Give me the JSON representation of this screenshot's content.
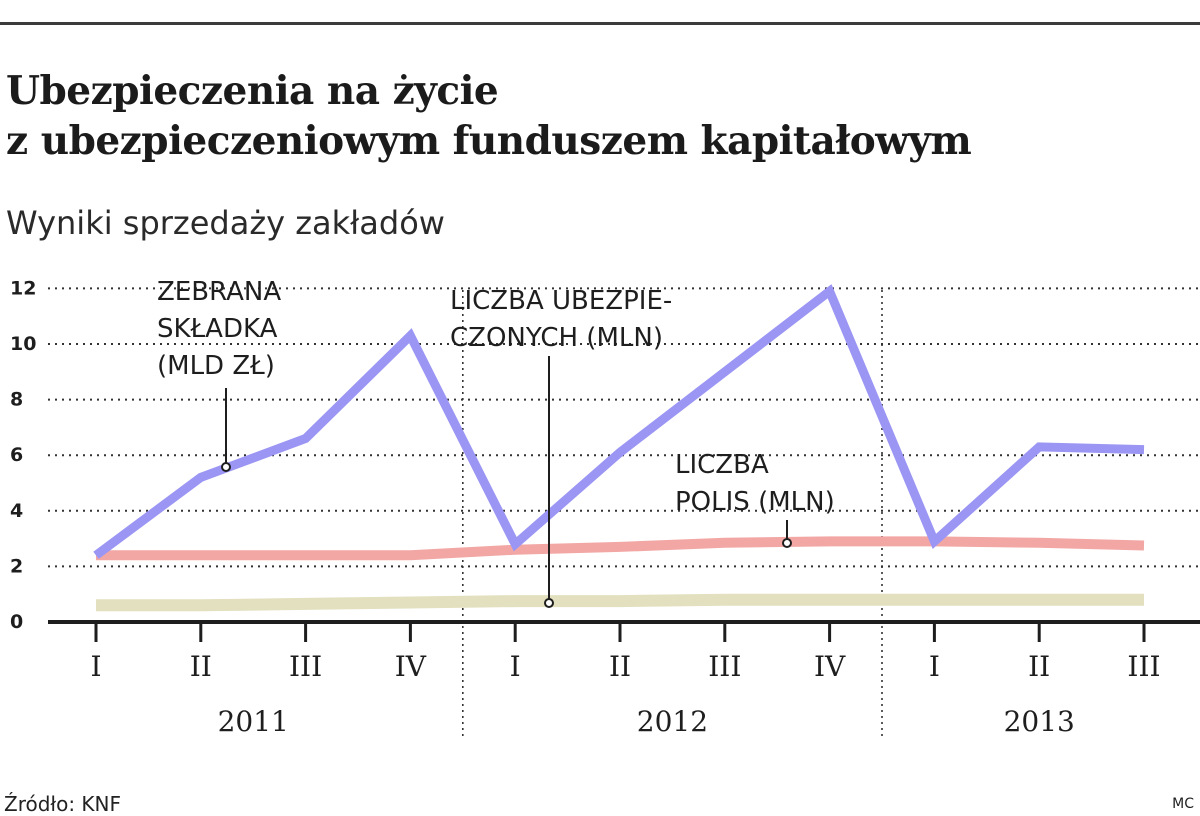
{
  "header": {
    "title_line1": "Ubezpieczenia na życie",
    "title_line2": "z ubezpieczeniowym funduszem kapitałowym",
    "subtitle": "Wyniki sprzedaży zakładów"
  },
  "footer": {
    "source": "Źródło: KNF",
    "credit": "MC"
  },
  "colors": {
    "skladka": "#9b96f4",
    "ubezpieczeni": "#e2e0be",
    "polisy": "#f2a7a4",
    "axis": "#1e1e1e",
    "grid": "#333333"
  },
  "chart_data": {
    "type": "line",
    "title": "Ubezpieczenia na życie z ubezpieczeniowym funduszem kapitałowym",
    "subtitle": "Wyniki sprzedaży zakładów",
    "categories": [
      "I",
      "II",
      "III",
      "IV",
      "I",
      "II",
      "III",
      "IV",
      "I",
      "II",
      "III"
    ],
    "year_groups": [
      {
        "label": "2011",
        "start": 0,
        "end": 3
      },
      {
        "label": "2012",
        "start": 4,
        "end": 7
      },
      {
        "label": "2013",
        "start": 8,
        "end": 10
      }
    ],
    "y_ticks": [
      "0",
      "2",
      "4",
      "6",
      "8",
      "10",
      "12"
    ],
    "ylim": [
      0,
      12
    ],
    "grid": true,
    "series": [
      {
        "name": "ZEBRANA SKŁADKA (MLD ZŁ)",
        "label_lines": [
          "ZEBRANA",
          "SKŁADKA",
          "(MLD ZŁ)"
        ],
        "values": [
          2.4,
          5.2,
          6.6,
          10.3,
          2.8,
          6.1,
          9.0,
          11.9,
          2.9,
          6.3,
          6.2
        ]
      },
      {
        "name": "LICZBA UBEZPIECZONYCH (MLN)",
        "label_lines": [
          "LICZBA UBEZPIE-",
          "CZONYCH (MLN)"
        ],
        "values": [
          0.6,
          0.6,
          0.65,
          0.7,
          0.75,
          0.75,
          0.8,
          0.8,
          0.8,
          0.8,
          0.8
        ]
      },
      {
        "name": "LICZBA POLIS (MLN)",
        "label_lines": [
          "LICZBA",
          "POLIS (MLN)"
        ],
        "values": [
          2.4,
          2.4,
          2.4,
          2.4,
          2.6,
          2.7,
          2.85,
          2.9,
          2.9,
          2.85,
          2.75
        ]
      }
    ]
  }
}
